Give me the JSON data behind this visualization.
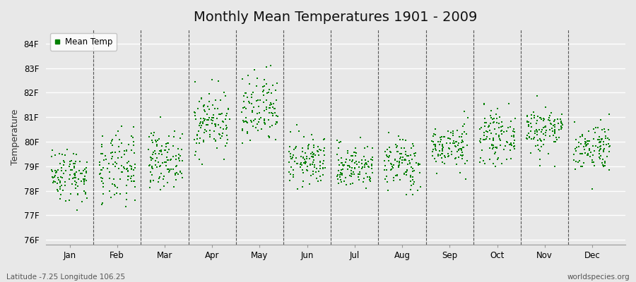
{
  "title": "Monthly Mean Temperatures 1901 - 2009",
  "ylabel": "Temperature",
  "xlabel_months": [
    "Jan",
    "Feb",
    "Mar",
    "Apr",
    "May",
    "Jun",
    "Jul",
    "Aug",
    "Sep",
    "Oct",
    "Nov",
    "Dec"
  ],
  "legend_label": "Mean Temp",
  "dot_color": "#008000",
  "background_color": "#e8e8e8",
  "plot_bg_color": "#e8e8e8",
  "ylim": [
    75.8,
    84.6
  ],
  "yticks": [
    76,
    77,
    78,
    79,
    80,
    81,
    82,
    83,
    84
  ],
  "ytick_labels": [
    "76F",
    "77F",
    "78F",
    "79F",
    "80F",
    "81F",
    "82F",
    "83F",
    "84F"
  ],
  "footer_left": "Latitude -7.25 Longitude 106.25",
  "footer_right": "worldspecies.org",
  "title_fontsize": 14,
  "axis_fontsize": 9,
  "tick_fontsize": 8.5,
  "dot_size": 3,
  "monthly_means": [
    78.65,
    78.85,
    79.3,
    80.8,
    81.2,
    79.2,
    79.0,
    79.1,
    79.8,
    80.2,
    80.5,
    79.8
  ],
  "monthly_stds": [
    0.55,
    0.75,
    0.55,
    0.65,
    0.75,
    0.5,
    0.45,
    0.55,
    0.45,
    0.5,
    0.5,
    0.5
  ],
  "n_years": 109,
  "seed": 42
}
